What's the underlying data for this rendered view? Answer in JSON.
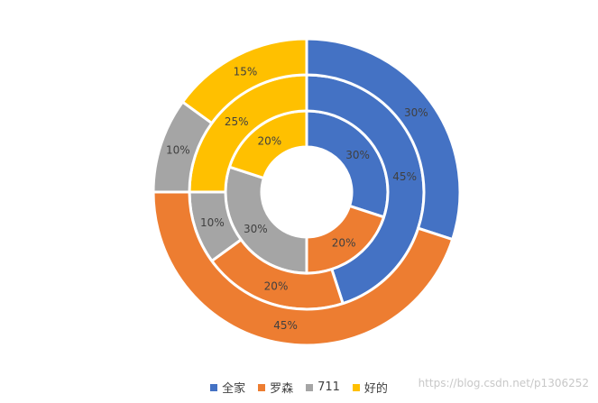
{
  "chart_data": {
    "type": "donut",
    "categories": [
      "全家",
      "罗森",
      "711",
      "好的"
    ],
    "colors": [
      "#4472C4",
      "#ED7D31",
      "#A5A5A5",
      "#FFC000"
    ],
    "series": [
      {
        "values": [
          30,
          20,
          30,
          20
        ],
        "labels": [
          "30%",
          "20%",
          "30%",
          "20%"
        ]
      },
      {
        "values": [
          45,
          20,
          10,
          25
        ],
        "labels": [
          "45%",
          "20%",
          "10%",
          "25%"
        ]
      },
      {
        "values": [
          30,
          45,
          10,
          15
        ],
        "labels": [
          "30%",
          "45%",
          "10%",
          "15%"
        ]
      }
    ],
    "legend_position": "bottom"
  },
  "watermark": "https://blog.csdn.net/p1306252"
}
